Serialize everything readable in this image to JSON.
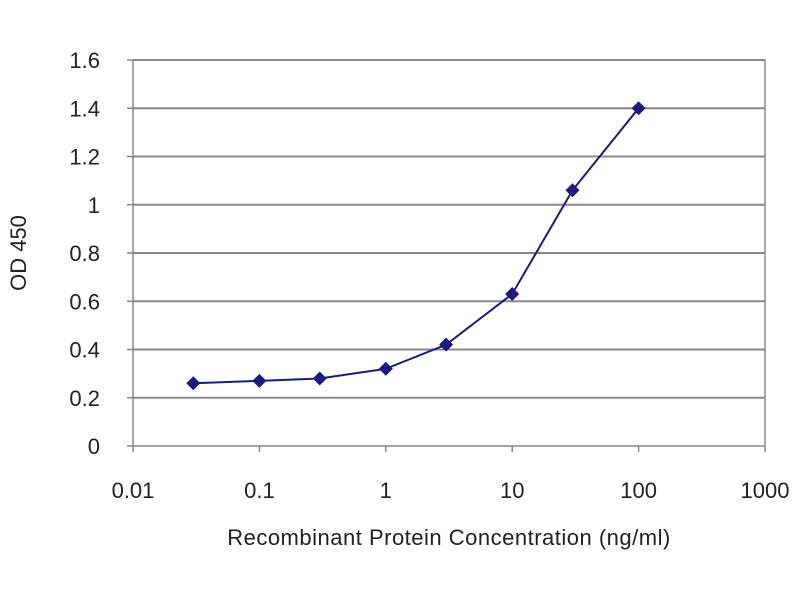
{
  "chart_data": {
    "type": "line",
    "title": "",
    "xlabel": "Recombinant Protein Concentration (ng/ml)",
    "ylabel": "OD 450",
    "x_scale": "log",
    "xlim": [
      0.01,
      1000
    ],
    "ylim": [
      0,
      1.6
    ],
    "x_ticks": [
      "0.01",
      "0.1",
      "1",
      "10",
      "100",
      "1000"
    ],
    "y_ticks": [
      "0",
      "0.2",
      "0.4",
      "0.6",
      "0.8",
      "1",
      "1.2",
      "1.4",
      "1.6"
    ],
    "grid": "horizontal",
    "series": [
      {
        "x": [
          0.03,
          0.1,
          0.3,
          1,
          3,
          10,
          30,
          100
        ],
        "y": [
          0.26,
          0.27,
          0.28,
          0.32,
          0.42,
          0.63,
          1.06,
          1.4
        ],
        "color": "#1a1a80",
        "marker": "diamond"
      }
    ]
  }
}
